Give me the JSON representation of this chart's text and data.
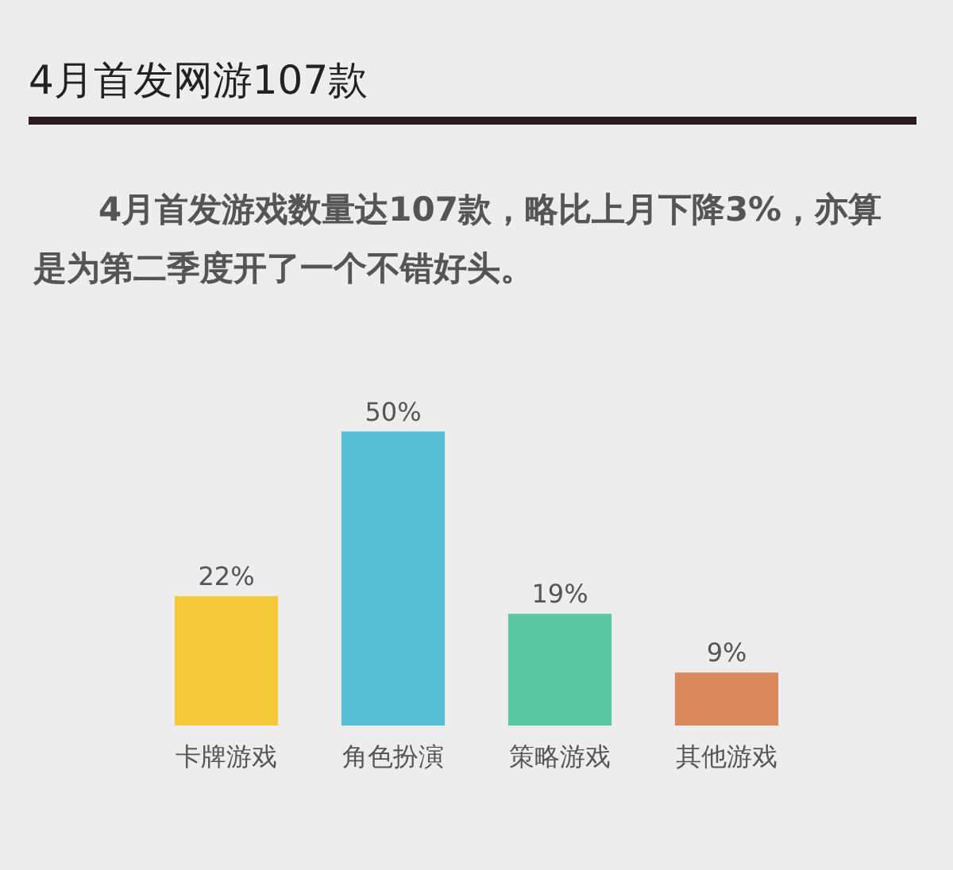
{
  "chart_data": {
    "type": "bar",
    "title": "4月首发网游107款",
    "subtitle": "4月首发游戏数量达107款，略比上月下降3%，亦算是为第二季度开了一个不错好头。",
    "categories": [
      "卡牌游戏",
      "角色扮演",
      "策略游戏",
      "其他游戏"
    ],
    "values": [
      22,
      50,
      19,
      9
    ],
    "value_labels": [
      "22%",
      "50%",
      "19%",
      "9%"
    ],
    "colors": [
      "#f5c93a",
      "#56bed6",
      "#5ac6a2",
      "#db875a"
    ],
    "tick_labels": "x"
  }
}
